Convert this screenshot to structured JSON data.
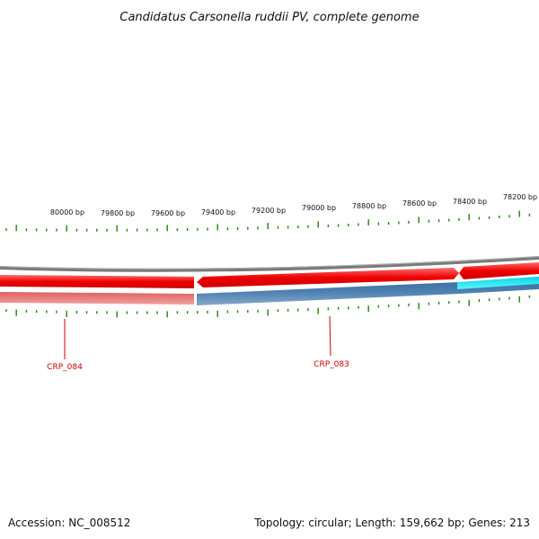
{
  "title": "Candidatus Carsonella ruddii PV, complete genome",
  "footer": {
    "accession": "Accession: NC_008512",
    "summary": "Topology: circular; Length: 159,662 bp; Genes: 213"
  },
  "scale": {
    "unit": "bp",
    "tick_labels": [
      "80000 bp",
      "79800 bp",
      "79600 bp",
      "79400 bp",
      "79200 bp",
      "79000 bp",
      "78800 bp",
      "78600 bp",
      "78400 bp",
      "78200 bp"
    ]
  },
  "gene_labels": [
    {
      "name": "CRP_084"
    },
    {
      "name": "CRP_083"
    }
  ],
  "colors": {
    "forward_cds": "#ee0000",
    "reverse_cds_red": "#e87878",
    "reverse_cds_blue": "#4a7fb0",
    "highlight_cds": "#19e6f0",
    "backbone": "#808080",
    "ticks": "#2e8b1e",
    "gene_label": "#cc0000"
  }
}
